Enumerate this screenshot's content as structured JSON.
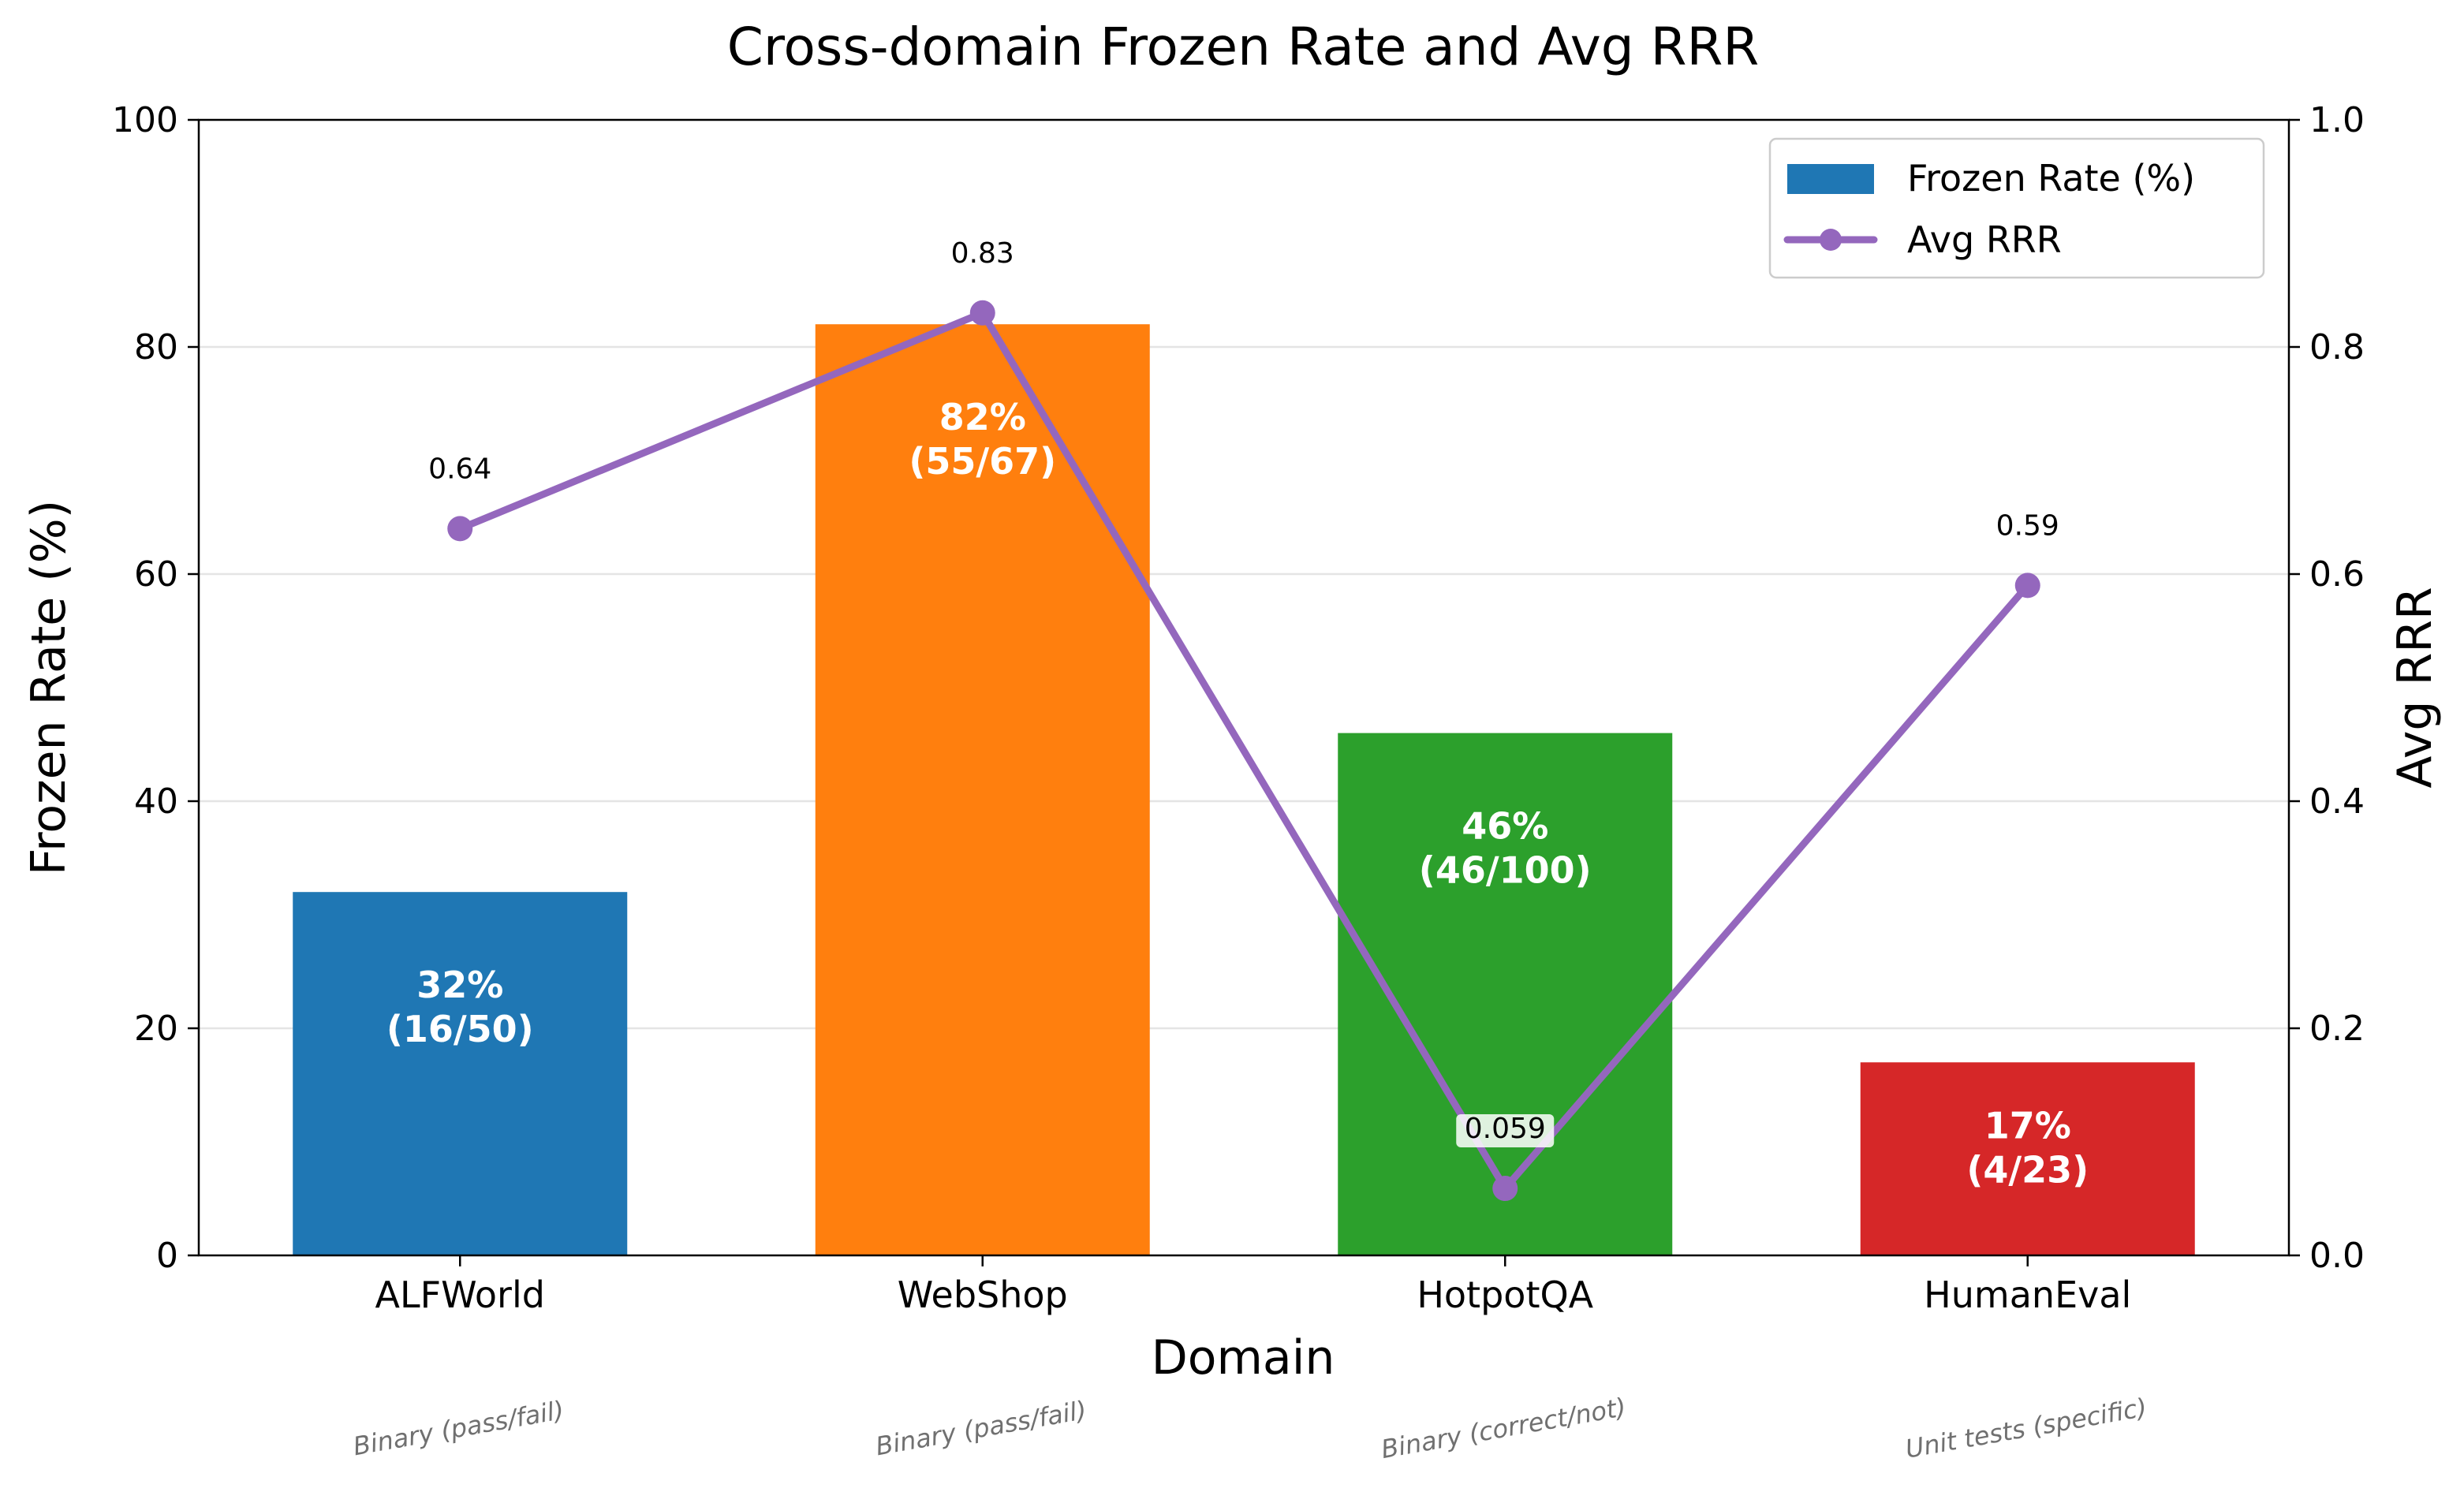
{
  "chart_data": {
    "type": "bar",
    "title": "Cross-domain Frozen Rate and Avg RRR",
    "xlabel": "Domain",
    "ylabel": "Frozen Rate (%)",
    "y2label": "Avg RRR",
    "ylim": [
      0,
      100
    ],
    "y2lim": [
      0,
      1.0
    ],
    "yticks": [
      "0",
      "20",
      "40",
      "60",
      "80",
      "100"
    ],
    "y2ticks": [
      "0.0",
      "0.2",
      "0.4",
      "0.6",
      "0.8",
      "1.0"
    ],
    "grid": "horizontal",
    "legend_position": "top-right",
    "categories": [
      "ALFWorld",
      "WebShop",
      "HotpotQA",
      "HumanEval"
    ],
    "subcategories": [
      "Binary (pass/fail)",
      "Binary (pass/fail)",
      "Binary (correct/not)",
      "Unit tests (specific)"
    ],
    "series": [
      {
        "name": "Frozen Rate (%)",
        "kind": "bar",
        "axis": "left",
        "values": [
          32,
          82,
          46,
          17
        ],
        "colors": [
          "#1f77b4",
          "#ff7f0e",
          "#2ca02c",
          "#d62728"
        ],
        "labels": [
          [
            "32%",
            "(16/50)"
          ],
          [
            "82%",
            "(55/67)"
          ],
          [
            "46%",
            "(46/100)"
          ],
          [
            "17%",
            "(4/23)"
          ]
        ]
      },
      {
        "name": "Avg RRR",
        "kind": "line",
        "axis": "right",
        "values": [
          0.64,
          0.83,
          0.059,
          0.59
        ],
        "labels": [
          "0.64",
          "0.83",
          "0.059",
          "0.59"
        ],
        "color": "#9467bd"
      }
    ]
  }
}
